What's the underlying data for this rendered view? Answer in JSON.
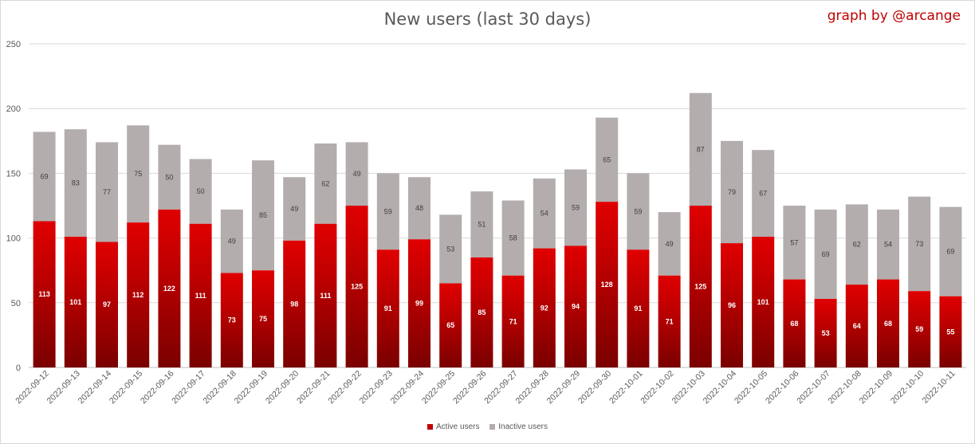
{
  "title": "New users (last 30 days)",
  "credit": "graph by @arcange",
  "chart_data": {
    "type": "bar",
    "stacked": true,
    "title": "New users (last 30 days)",
    "ylim": [
      0,
      250
    ],
    "yticks": [
      0,
      50,
      100,
      150,
      200,
      250
    ],
    "grid": true,
    "legend_position": "bottom",
    "categories": [
      "2022-09-12",
      "2022-09-13",
      "2022-09-14",
      "2022-09-15",
      "2022-09-16",
      "2022-09-17",
      "2022-09-18",
      "2022-09-19",
      "2022-09-20",
      "2022-09-21",
      "2022-09-22",
      "2022-09-23",
      "2022-09-24",
      "2022-09-25",
      "2022-09-26",
      "2022-09-27",
      "2022-09-28",
      "2022-09-29",
      "2022-09-30",
      "2022-10-01",
      "2022-10-02",
      "2022-10-03",
      "2022-10-04",
      "2022-10-05",
      "2022-10-06",
      "2022-10-07",
      "2022-10-08",
      "2022-10-09",
      "2022-10-10",
      "2022-10-11"
    ],
    "series": [
      {
        "name": "Active users",
        "color": "#c00000",
        "values": [
          113,
          101,
          97,
          112,
          122,
          111,
          73,
          75,
          98,
          111,
          125,
          91,
          99,
          65,
          85,
          71,
          92,
          94,
          128,
          91,
          71,
          125,
          96,
          101,
          68,
          53,
          64,
          68,
          59,
          55
        ]
      },
      {
        "name": "Inactive users",
        "color": "#b3adad",
        "values": [
          69,
          83,
          77,
          75,
          50,
          50,
          49,
          85,
          49,
          62,
          49,
          59,
          48,
          53,
          51,
          58,
          54,
          59,
          65,
          59,
          49,
          87,
          79,
          67,
          57,
          69,
          62,
          54,
          73,
          69
        ]
      }
    ]
  }
}
